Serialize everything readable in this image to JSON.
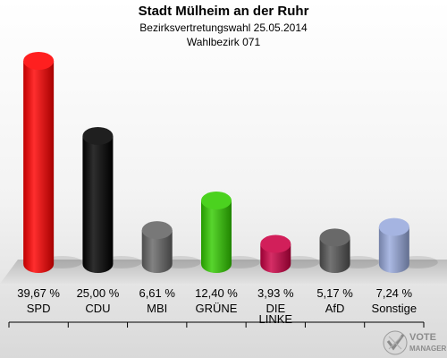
{
  "chart_data": {
    "type": "bar",
    "title": "Stadt Mülheim an der Ruhr",
    "subtitle_1": "Bezirksvertretungswahl 25.05.2014",
    "subtitle_2": "Wahlbezirk 071",
    "unit": "%",
    "categories": [
      "SPD",
      "CDU",
      "MBI",
      "GRÜNE",
      "DIE LINKE",
      "AfD",
      "Sonstige"
    ],
    "category_lines": [
      [
        "SPD"
      ],
      [
        "CDU"
      ],
      [
        "MBI"
      ],
      [
        "GRÜNE"
      ],
      [
        "DIE",
        "LINKE"
      ],
      [
        "AfD"
      ],
      [
        "Sonstige"
      ]
    ],
    "values": [
      39.67,
      25.0,
      6.61,
      12.4,
      3.93,
      5.17,
      7.24
    ],
    "value_labels": [
      "39,67 %",
      "25,00 %",
      "6,61 %",
      "12,40 %",
      "3,93 %",
      "5,17 %",
      "7,24 %"
    ],
    "colors": [
      "#ff0000",
      "#000000",
      "#666666",
      "#33cc00",
      "#cc0044",
      "#555555",
      "#99aadd"
    ],
    "grid": false,
    "legend": "none"
  },
  "watermark": {
    "line1": "VOTE",
    "line2": "MANAGER"
  }
}
